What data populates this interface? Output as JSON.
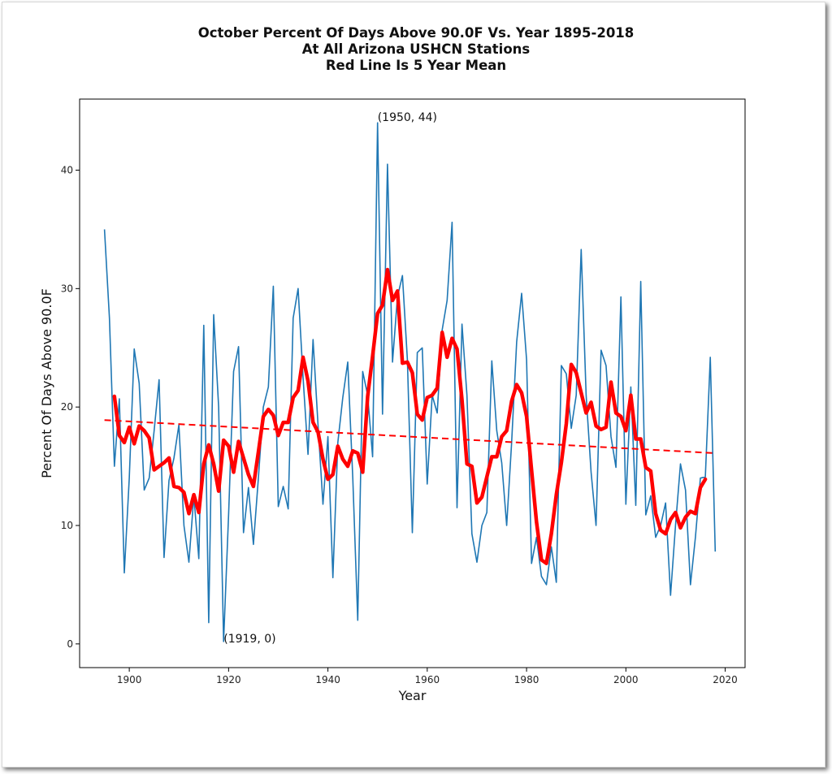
{
  "chart_data": {
    "type": "line",
    "title": [
      "October Percent Of Days Above 90.0F Vs. Year 1895-2018",
      "At All Arizona USHCN Stations",
      "Red Line Is 5 Year Mean"
    ],
    "xlabel": "Year",
    "ylabel": "Percent Of Days Above 90.0F",
    "xlim": [
      1890,
      2024
    ],
    "ylim": [
      -2,
      46
    ],
    "xticks": [
      1900,
      1920,
      1940,
      1960,
      1980,
      2000,
      2020
    ],
    "yticks": [
      0,
      10,
      20,
      30,
      40
    ],
    "grid": false,
    "colors": {
      "series": "#1f77b4",
      "mean": "#ff0000",
      "trend": "#ff0000"
    },
    "series": [
      {
        "name": "Percent Of Days Above 90.0F",
        "style": "thin-blue",
        "x_start": 1895,
        "values": [
          35,
          27.5,
          15,
          20.7,
          6,
          14,
          24.9,
          22,
          13,
          14,
          18,
          22.3,
          7.3,
          13.8,
          15.7,
          18.5,
          10,
          6.9,
          12.5,
          7.2,
          26.9,
          1.8,
          27.8,
          20,
          0.2,
          11,
          23,
          25.1,
          9.4,
          13.2,
          8.4,
          14,
          20,
          21.7,
          30.2,
          11.6,
          13.3,
          11.4,
          27.5,
          30,
          22.5,
          16,
          25.7,
          18.5,
          11.8,
          17.5,
          5.6,
          17,
          20.8,
          23.8,
          14,
          2,
          23,
          21,
          15.8,
          44,
          19.4,
          40.5,
          23.8,
          29.3,
          31.1,
          24,
          9.4,
          24.6,
          25,
          13.5,
          21,
          19.5,
          26.5,
          29,
          35.6,
          11.5,
          27,
          21,
          9.3,
          6.9,
          10,
          11.1,
          23.9,
          18,
          15.3,
          10,
          17,
          25.5,
          29.6,
          24,
          6.8,
          9,
          5.7,
          5,
          8.2,
          5.2,
          23.5,
          22.8,
          18.2,
          21,
          33.3,
          21,
          14.5,
          10,
          24.8,
          23.5,
          17.5,
          14.9,
          29.3,
          11.8,
          21.7,
          11.7,
          30.6,
          10.9,
          12.5,
          9,
          10,
          11.9,
          4.1,
          10,
          15.2,
          13,
          5,
          9,
          14,
          14.1,
          24.2,
          7.8
        ]
      },
      {
        "name": "5 Year Mean",
        "style": "thick-red",
        "x_start": 1897,
        "values": [
          20.9,
          17.6,
          17,
          18.3,
          16.9,
          18.4,
          18,
          17.4,
          14.7,
          15,
          15.3,
          15.7,
          13.3,
          13.2,
          12.8,
          11,
          12.6,
          11.1,
          15.2,
          16.8,
          15.2,
          12.9,
          17.2,
          16.7,
          14.5,
          17.1,
          15.7,
          14.3,
          13.3,
          16.2,
          19.2,
          19.8,
          19.3,
          17.6,
          18.7,
          18.7,
          20.8,
          21.4,
          24.2,
          22.2,
          18.7,
          17.9,
          15.6,
          13.9,
          14.3,
          16.7,
          15.6,
          15,
          16.3,
          16.1,
          14.5,
          20.9,
          24.3,
          27.9,
          28.6,
          31.6,
          29,
          29.8,
          23.7,
          23.8,
          22.9,
          19.4,
          18.9,
          20.8,
          21,
          21.6,
          26.3,
          24.2,
          25.8,
          24.9,
          20.6,
          15.2,
          15,
          11.9,
          12.4,
          14.1,
          15.8,
          15.8,
          17.5,
          18,
          20.5,
          21.9,
          21.2,
          19.2,
          14.7,
          10.3,
          7.1,
          6.8,
          9.3,
          12.6,
          15.3,
          18.6,
          23.6,
          22.9,
          21.2,
          19.5,
          20.4,
          18.4,
          18.1,
          18.3,
          22.1,
          19.5,
          19.2,
          18,
          21,
          17.3,
          17.3,
          14.9,
          14.6,
          11,
          9.6,
          9.3,
          10.5,
          11.1,
          9.8,
          10.7,
          11.2,
          11,
          13.2,
          13.9
        ]
      },
      {
        "name": "Linear Trend",
        "style": "dashed-red",
        "x": [
          1895,
          2018
        ],
        "values": [
          18.9,
          16.1
        ]
      }
    ],
    "annotations": [
      {
        "text": "(1950, 44)",
        "x": 1950,
        "y": 44
      },
      {
        "text": "(1919, 0)",
        "x": 1919,
        "y": 0
      }
    ],
    "legend": "none"
  }
}
